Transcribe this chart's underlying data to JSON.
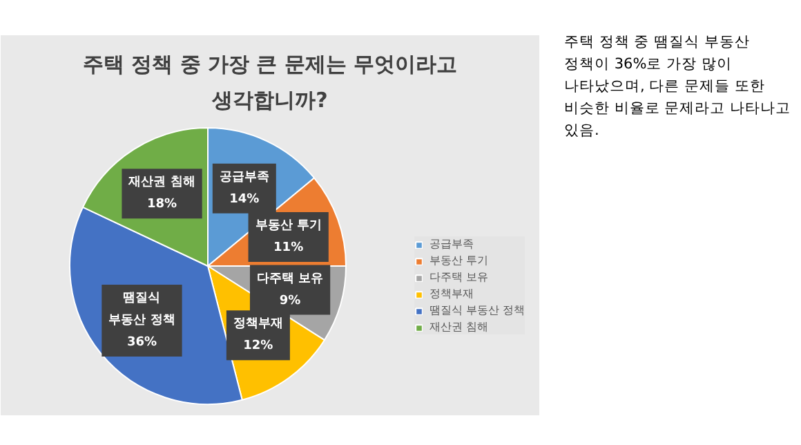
{
  "chart_data": {
    "type": "pie",
    "title": "주택 정책 중 가장 큰 문제는 무엇이라고 생각합니까?",
    "categories": [
      "공급부족",
      "부동산 투기",
      "다주택 보유",
      "정책부재",
      "땜질식 부동산 정책",
      "재산권 침해"
    ],
    "values": [
      14,
      11,
      9,
      12,
      36,
      18
    ],
    "colors": [
      "#5b9bd5",
      "#ed7d31",
      "#a5a5a5",
      "#ffc000",
      "#4472c4",
      "#70ad47"
    ],
    "value_labels": [
      "14%",
      "11%",
      "9%",
      "12%",
      "36%",
      "18%"
    ],
    "legend": "right",
    "annotations": [
      "주택 정책 중 땜질식 부동산 정책이 36%로 가장 많이 나타났으며, 다른 문제들 또한 비슷한 비율로 문제라고 나타나고 있음."
    ]
  }
}
